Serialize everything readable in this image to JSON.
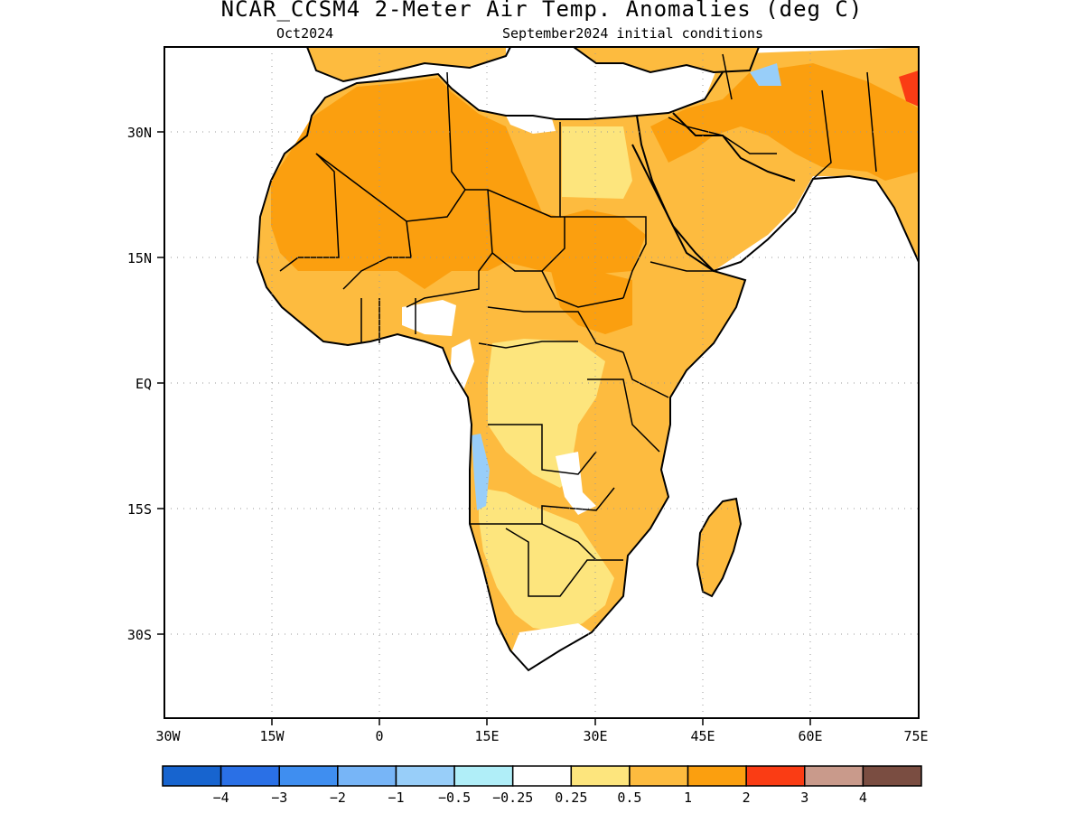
{
  "title": "NCAR_CCSM4 2-Meter Air Temp. Anomalies (deg C)",
  "subtitle_left": "Oct2024",
  "subtitle_right": "September2024 initial conditions",
  "map": {
    "lon_range": [
      -30,
      75
    ],
    "lat_range": [
      -40,
      40
    ],
    "lat_labels": [
      {
        "lat": 30,
        "label": "30N"
      },
      {
        "lat": 15,
        "label": "15N"
      },
      {
        "lat": 0,
        "label": "EQ"
      },
      {
        "lat": -15,
        "label": "15S"
      },
      {
        "lat": -30,
        "label": "30S"
      }
    ],
    "lon_labels": [
      {
        "lon": -30,
        "label": "30W"
      },
      {
        "lon": -15,
        "label": "15W"
      },
      {
        "lon": 0,
        "label": "0"
      },
      {
        "lon": 15,
        "label": "15E"
      },
      {
        "lon": 30,
        "label": "30E"
      },
      {
        "lon": 45,
        "label": "45E"
      },
      {
        "lon": 60,
        "label": "60E"
      },
      {
        "lon": 75,
        "label": "75E"
      }
    ],
    "grid": "dotted"
  },
  "colorbar": {
    "colors": [
      "#1764cf",
      "#2a70e6",
      "#3f8ef0",
      "#77b5f7",
      "#98cef9",
      "#b0eef8",
      "#ffffff",
      "#fde57d",
      "#fdbb3f",
      "#fb9f0f",
      "#fa3c14",
      "#c99a8b",
      "#7a4d41"
    ],
    "labels": [
      "−4",
      "−3",
      "−2",
      "−1",
      "−0.5",
      "−0.25",
      "0.25",
      "0.5",
      "1",
      "2",
      "3",
      "4"
    ]
  },
  "anomaly_colors": {
    "low": "#fde57d",
    "mid": "#fdbb3f",
    "high": "#fb9f0f",
    "peak": "#fa3c14",
    "cool": "#98cef9"
  }
}
